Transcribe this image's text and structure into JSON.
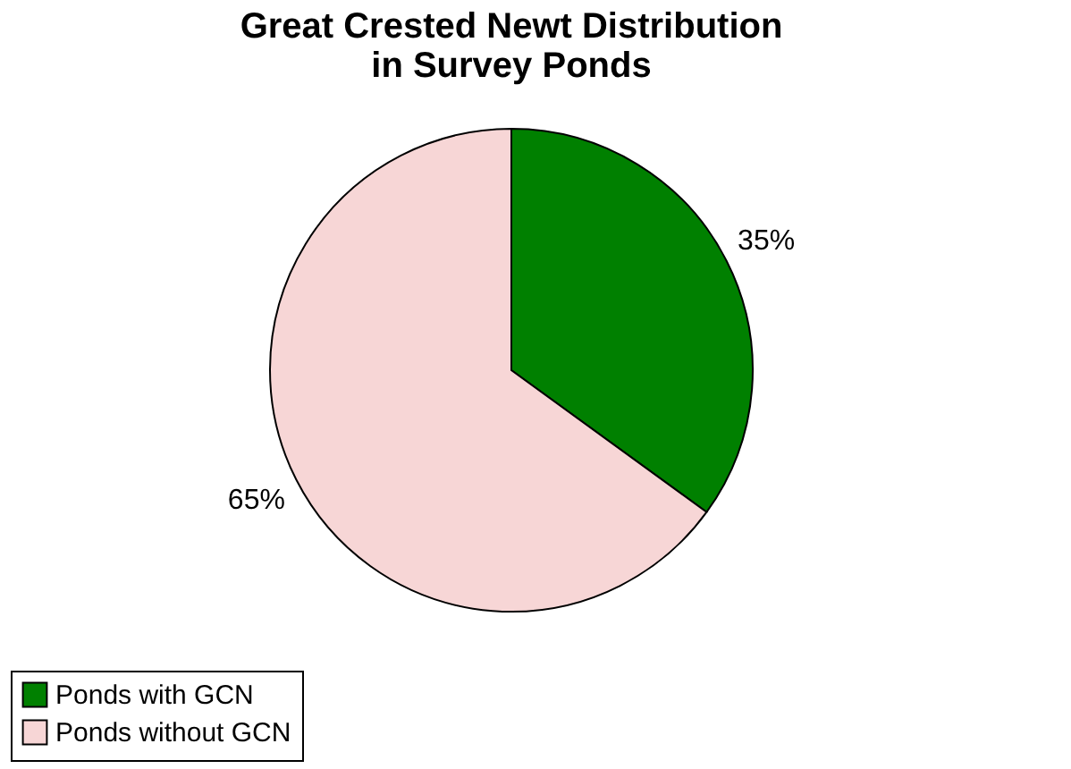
{
  "chart_data": {
    "type": "pie",
    "title": "Great Crested Newt Distribution\nin Survey Ponds",
    "categories": [
      "Ponds with GCN",
      "Ponds without GCN"
    ],
    "values": [
      35,
      65
    ],
    "colors": [
      "#008000",
      "#f7d6d6"
    ],
    "value_labels": [
      "35%",
      "65%"
    ],
    "legend": "bottom"
  }
}
